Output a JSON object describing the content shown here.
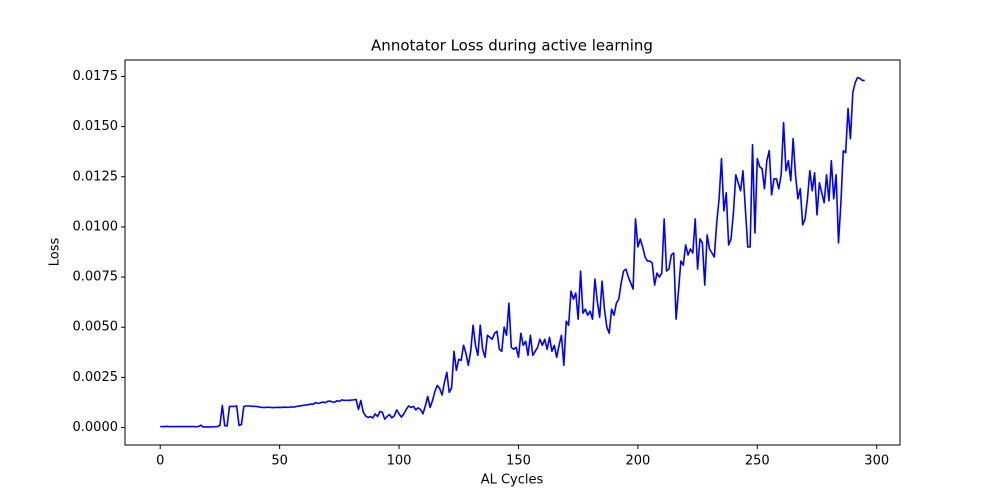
{
  "chart_data": {
    "type": "line",
    "title": "Annotator Loss during active learning",
    "xlabel": "AL Cycles",
    "ylabel": "Loss",
    "x": [
      0,
      1,
      2,
      3,
      4,
      5,
      6,
      7,
      8,
      9,
      10,
      11,
      12,
      13,
      14,
      15,
      16,
      17,
      18,
      19,
      20,
      21,
      22,
      23,
      24,
      25,
      26,
      27,
      28,
      29,
      30,
      31,
      32,
      33,
      34,
      35,
      36,
      37,
      38,
      39,
      40,
      41,
      42,
      43,
      44,
      45,
      46,
      47,
      48,
      49,
      50,
      51,
      52,
      53,
      54,
      55,
      56,
      57,
      58,
      59,
      60,
      61,
      62,
      63,
      64,
      65,
      66,
      67,
      68,
      69,
      70,
      71,
      72,
      73,
      74,
      75,
      76,
      77,
      78,
      79,
      80,
      81,
      82,
      83,
      84,
      85,
      86,
      87,
      88,
      89,
      90,
      91,
      92,
      93,
      94,
      95,
      96,
      97,
      98,
      99,
      100,
      101,
      102,
      103,
      104,
      105,
      106,
      107,
      108,
      109,
      110,
      111,
      112,
      113,
      114,
      115,
      116,
      117,
      118,
      119,
      120,
      121,
      122,
      123,
      124,
      125,
      126,
      127,
      128,
      129,
      130,
      131,
      132,
      133,
      134,
      135,
      136,
      137,
      138,
      139,
      140,
      141,
      142,
      143,
      144,
      145,
      146,
      147,
      148,
      149,
      150,
      151,
      152,
      153,
      154,
      155,
      156,
      157,
      158,
      159,
      160,
      161,
      162,
      163,
      164,
      165,
      166,
      167,
      168,
      169,
      170,
      171,
      172,
      173,
      174,
      175,
      176,
      177,
      178,
      179,
      180,
      181,
      182,
      183,
      184,
      185,
      186,
      187,
      188,
      189,
      190,
      191,
      192,
      193,
      194,
      195,
      196,
      197,
      198,
      199,
      200,
      201,
      202,
      203,
      204,
      205,
      206,
      207,
      208,
      209,
      210,
      211,
      212,
      213,
      214,
      215,
      216,
      217,
      218,
      219,
      220,
      221,
      222,
      223,
      224,
      225,
      226,
      227,
      228,
      229,
      230,
      231,
      232,
      233,
      234,
      235,
      236,
      237,
      238,
      239,
      240,
      241,
      242,
      243,
      244,
      245,
      246,
      247,
      248,
      249,
      250,
      251,
      252,
      253,
      254,
      255,
      256,
      257,
      258,
      259,
      260,
      261,
      262,
      263,
      264,
      265,
      266,
      267,
      268,
      269,
      270,
      271,
      272,
      273,
      274,
      275,
      276,
      277,
      278,
      279,
      280,
      281,
      282,
      283,
      284,
      285,
      286,
      287,
      288,
      289,
      290,
      291,
      292,
      293,
      294,
      295
    ],
    "series": [
      {
        "color": "#0000ff",
        "values": [
          5e-05,
          5e-05,
          5e-05,
          6e-05,
          4e-05,
          5e-05,
          5e-05,
          5e-05,
          5e-05,
          5e-05,
          5e-05,
          5e-05,
          5e-05,
          5e-05,
          5e-05,
          4e-05,
          5e-05,
          0.00012,
          3e-05,
          3e-05,
          3e-05,
          3e-05,
          4e-05,
          4e-05,
          5e-05,
          0.0001,
          0.0011,
          0.0001,
          8e-05,
          0.00105,
          0.00105,
          0.00105,
          0.00108,
          0.0001,
          0.00015,
          0.00105,
          0.00108,
          0.00108,
          0.00106,
          0.00106,
          0.00105,
          0.00104,
          0.00101,
          0.001,
          0.001,
          0.00101,
          0.00101,
          0.00099,
          0.001,
          0.001,
          0.00101,
          0.001,
          0.00102,
          0.00101,
          0.00101,
          0.00103,
          0.00102,
          0.00105,
          0.00107,
          0.00109,
          0.00111,
          0.00112,
          0.00114,
          0.00117,
          0.00116,
          0.00124,
          0.0012,
          0.00123,
          0.00127,
          0.00124,
          0.0013,
          0.00132,
          0.00128,
          0.00126,
          0.00134,
          0.0013,
          0.00138,
          0.00135,
          0.00136,
          0.00135,
          0.00137,
          0.00138,
          0.0014,
          0.0009,
          0.00135,
          0.00078,
          0.00058,
          0.0005,
          0.00055,
          0.00048,
          0.00068,
          0.00055,
          0.0008,
          0.00076,
          0.00042,
          0.00055,
          0.00065,
          0.00048,
          0.00058,
          0.00088,
          0.00068,
          0.00052,
          0.00068,
          0.0009,
          0.00108,
          0.001,
          0.00106,
          0.00088,
          0.00098,
          0.0009,
          0.00068,
          0.00108,
          0.00155,
          0.001,
          0.00134,
          0.0018,
          0.0021,
          0.00195,
          0.00162,
          0.00225,
          0.00275,
          0.00175,
          0.00198,
          0.0038,
          0.00285,
          0.0034,
          0.00335,
          0.0041,
          0.0037,
          0.0031,
          0.0038,
          0.0051,
          0.0041,
          0.0036,
          0.0051,
          0.0039,
          0.0035,
          0.0046,
          0.0045,
          0.0044,
          0.0047,
          0.0048,
          0.0039,
          0.0038,
          0.005,
          0.0046,
          0.0062,
          0.004,
          0.0039,
          0.004,
          0.0035,
          0.0047,
          0.0041,
          0.0043,
          0.0036,
          0.0046,
          0.0036,
          0.0038,
          0.004,
          0.0044,
          0.0041,
          0.0044,
          0.0039,
          0.0045,
          0.0038,
          0.0041,
          0.0035,
          0.0041,
          0.0046,
          0.0031,
          0.0053,
          0.0051,
          0.0068,
          0.0064,
          0.0067,
          0.0054,
          0.0078,
          0.0057,
          0.0059,
          0.0056,
          0.0058,
          0.0054,
          0.0074,
          0.0063,
          0.0055,
          0.0073,
          0.0059,
          0.005,
          0.0047,
          0.0059,
          0.0056,
          0.0062,
          0.0064,
          0.0072,
          0.0078,
          0.0079,
          0.0075,
          0.0072,
          0.0069,
          0.0104,
          0.009,
          0.0094,
          0.009,
          0.0085,
          0.0083,
          0.0083,
          0.0082,
          0.0071,
          0.0077,
          0.0075,
          0.0077,
          0.0104,
          0.0078,
          0.0079,
          0.0086,
          0.0087,
          0.0054,
          0.0068,
          0.0083,
          0.0081,
          0.0091,
          0.0086,
          0.0089,
          0.0087,
          0.0104,
          0.0079,
          0.0094,
          0.0092,
          0.0071,
          0.0096,
          0.0089,
          0.0087,
          0.0085,
          0.0102,
          0.0114,
          0.0134,
          0.0108,
          0.0117,
          0.0091,
          0.0094,
          0.0107,
          0.0126,
          0.0122,
          0.0118,
          0.0128,
          0.0109,
          0.009,
          0.009,
          0.0141,
          0.0097,
          0.0134,
          0.013,
          0.0129,
          0.0119,
          0.0133,
          0.0138,
          0.0116,
          0.0124,
          0.0124,
          0.0119,
          0.0126,
          0.0152,
          0.0128,
          0.0133,
          0.0123,
          0.0144,
          0.0126,
          0.0114,
          0.0119,
          0.0101,
          0.0104,
          0.0114,
          0.0128,
          0.0118,
          0.0127,
          0.0106,
          0.0122,
          0.0117,
          0.0112,
          0.0126,
          0.0113,
          0.0133,
          0.0114,
          0.0126,
          0.0092,
          0.0112,
          0.0138,
          0.0137,
          0.0159,
          0.0144,
          0.0167,
          0.0172,
          0.01745,
          0.0174,
          0.0173,
          0.0173
        ]
      }
    ],
    "xlim": [
      -14.75,
      309.75
    ],
    "xticks": [
      0,
      50,
      100,
      150,
      200,
      250,
      300
    ],
    "ylim": [
      -0.00087,
      0.01832
    ],
    "yticks": [
      {
        "value": 0,
        "label": "0.0000"
      },
      {
        "value": 0.0025,
        "label": "0.0025"
      },
      {
        "value": 0.005,
        "label": "0.0050"
      },
      {
        "value": 0.0075,
        "label": "0.0075"
      },
      {
        "value": 0.01,
        "label": "0.0100"
      },
      {
        "value": 0.0125,
        "label": "0.0125"
      },
      {
        "value": 0.015,
        "label": "0.0150"
      },
      {
        "value": 0.0175,
        "label": "0.0175"
      }
    ],
    "grid": false
  }
}
